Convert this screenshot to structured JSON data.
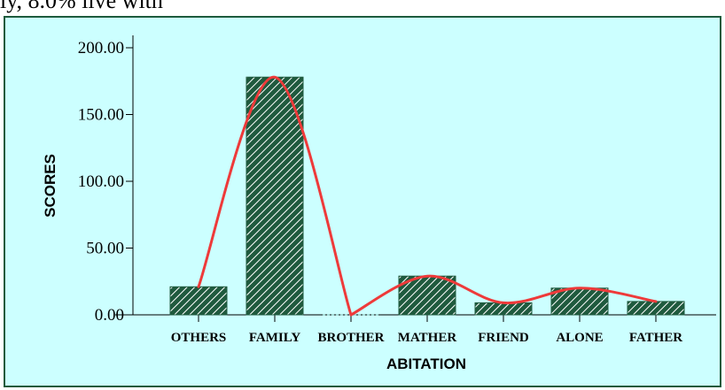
{
  "caption_fragment": "ly, 8.0% live with ",
  "chart_data": {
    "type": "bar",
    "xlabel": "ABITATION",
    "ylabel": "SCORES",
    "ylim": [
      0,
      220
    ],
    "yticks": [
      0,
      50,
      100,
      150,
      200
    ],
    "ytick_labels": [
      "0.00",
      "50.00",
      "100.00",
      "150.00",
      "200.00"
    ],
    "categories": [
      "OTHERS",
      "FAMILY",
      "BROTHER",
      "MATHER",
      "FRIEND",
      "ALONE",
      "FATHER"
    ],
    "values": [
      21,
      178,
      0,
      29,
      9,
      20,
      10
    ],
    "grid": false,
    "legend": "none",
    "bar_style": "diagonal-hatch",
    "trend_line": true,
    "colors": {
      "background": "#ccffff",
      "bar": "#1f5a3e",
      "hatch": "#ffffff",
      "trend": "#ee3a3a",
      "frame": "#1d5a3c"
    }
  }
}
